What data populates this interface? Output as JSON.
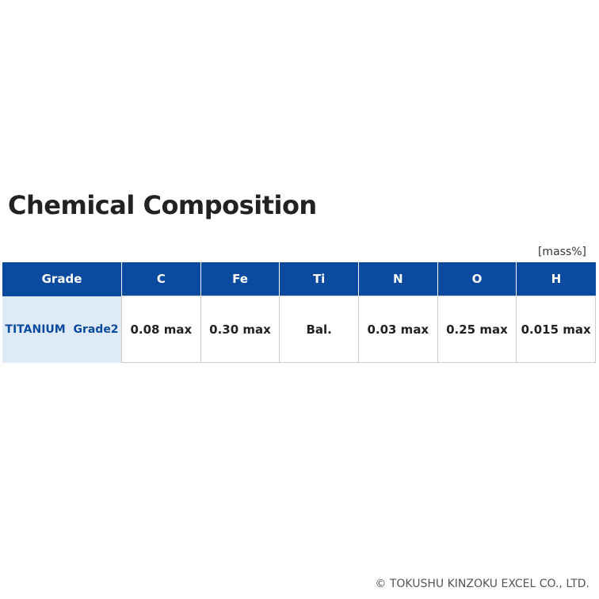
{
  "header": {
    "title": "Chemical Composition",
    "unit": "[mass%]"
  },
  "table": {
    "columns": [
      "Grade",
      "C",
      "Fe",
      "Ti",
      "N",
      "O",
      "H"
    ],
    "rows": [
      [
        "TITANIUM  Grade2",
        "0.08 max",
        "0.30 max",
        "Bal.",
        "0.03 max",
        "0.25 max",
        "0.015 max"
      ]
    ]
  },
  "footer": {
    "copyright": "© TOKUSHU KINZOKU EXCEL CO., LTD."
  }
}
